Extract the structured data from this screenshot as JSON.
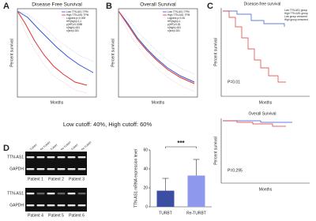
{
  "panel_a": {
    "label": "A",
    "title": "Disease Free Survival",
    "y_axis": "Percent survival",
    "x_axis": "Months",
    "legend": [
      "Low TTN-AS1 TPM",
      "High TTN-AS1 TPM",
      "Logrank p=0.008",
      "HR(high)=2.1",
      "p(HR)=0.0088",
      "n(high)=181",
      "n(low)=181"
    ]
  },
  "panel_b": {
    "label": "B",
    "title": "Overall Survival",
    "y_axis": "Percent survival",
    "x_axis": "Months",
    "legend": [
      "Low TTN-AS1 TPM",
      "High TTN-AS1 TPM",
      "Logrank p=0.81",
      "HR(high)=1",
      "p(HR)=0.81",
      "n(high)=181",
      "n(low)=181"
    ]
  },
  "cutoff_note": "Low cutoff: 40%, High cutoff: 60%",
  "panel_c": {
    "label": "C",
    "top": {
      "title": "Disease-free survival",
      "y_axis": "Percent survival",
      "x_axis": "Months",
      "p_value": "P=0.01"
    },
    "bottom": {
      "title": "Overall Survival",
      "y_axis": "Percent survival",
      "x_axis": "Months",
      "p_value": "P=0.295"
    },
    "legend": [
      "Low TTN-AS1 group",
      "High TTN-AS1 group",
      "Low group censored",
      "High group censored"
    ]
  },
  "panel_d": {
    "label": "D",
    "lanes": [
      "TURBT",
      "Re-TURBT",
      "TURBT",
      "Re-TURBT",
      "TURBT",
      "Re-TURBT"
    ],
    "rows": [
      "TTN-AS1",
      "GAPDH"
    ],
    "patients": [
      "Patient 1",
      "Patient 2",
      "Patient 3",
      "Patient 4",
      "Patient 5",
      "Patient 6"
    ],
    "bar_chart": {
      "y_axis": "TTN-AS1 mRNA expression level",
      "categories": [
        "TURBT",
        "Re-TURBT"
      ],
      "values": [
        17,
        33
      ],
      "errors": [
        13,
        17
      ],
      "colors": [
        "#3b4ea3",
        "#8e99ee"
      ],
      "ylim": [
        0,
        60
      ],
      "yticks": [
        0,
        20,
        40,
        60
      ],
      "significance": "***"
    }
  }
}
